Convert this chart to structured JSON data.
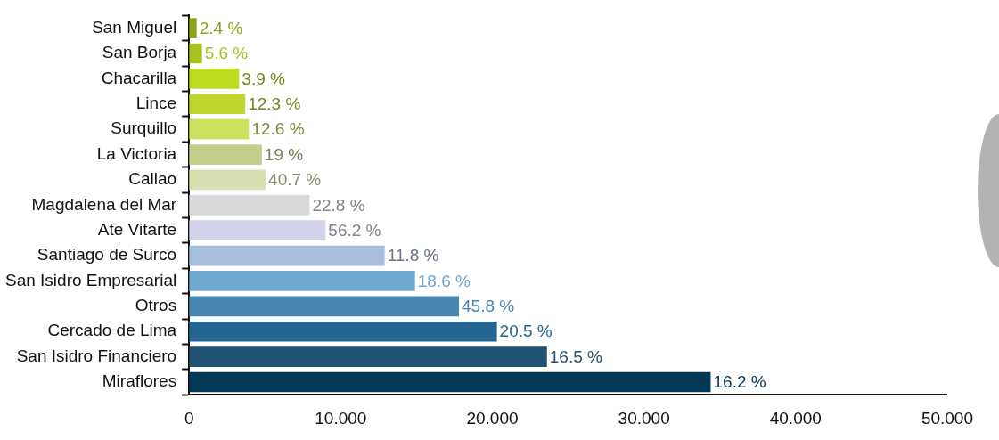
{
  "chart_data": {
    "type": "bar",
    "orientation": "horizontal",
    "categories": [
      "San Miguel",
      "San Borja",
      "Chacarilla",
      "Lince",
      "Surquillo",
      "La Victoria",
      "Callao",
      "Magdalena del Mar",
      "Ate Vitarte",
      "Santiago de Surco",
      "San Isidro Empresarial",
      "Otros",
      "Cercado de Lima",
      "San Isidro Financiero",
      "Miraflores"
    ],
    "values": [
      0.5,
      0.85,
      3.3,
      3.7,
      3.95,
      4.8,
      5.05,
      7.95,
      9,
      12.9,
      14.9,
      17.8,
      20.3,
      23.6,
      34.4
    ],
    "colors": [
      "#8ea31a",
      "#a7c11e",
      "#bedc1f",
      "#c0d62f",
      "#cde05e",
      "#c4cf8c",
      "#d6e0b0",
      "#d9d9d9",
      "#d2d2e8",
      "#a8bedd",
      "#71a8d0",
      "#4786b0",
      "#236692",
      "#225273",
      "#043858"
    ],
    "annotations": [
      {
        "text": "2.4 %",
        "x": 0.5,
        "y": "San Miguel"
      },
      {
        "text": "5.6 %",
        "x": 0.85,
        "y": "San Borja"
      },
      {
        "text": "3.9 %",
        "x": 3.3,
        "y": "Chacarilla"
      },
      {
        "text": "12.3 %",
        "x": 3.7,
        "y": "Lince"
      },
      {
        "text": "12.6 %",
        "x": 3.95,
        "y": "Surquillo"
      },
      {
        "text": "19 %",
        "x": 4.8,
        "y": "La Victoria"
      },
      {
        "text": "40.7 %",
        "x": 5.05,
        "y": "Callao"
      },
      {
        "text": "22.8 %",
        "x": 7.95,
        "y": "Magdalena del Mar"
      },
      {
        "text": "56.2 %",
        "x": 9,
        "y": "Ate Vitarte"
      },
      {
        "text": "11.8 %",
        "x": 12.9,
        "y": "Santiago de Surco"
      },
      {
        "text": "18.6 %",
        "x": 14.9,
        "y": "San Isidro Empresarial"
      },
      {
        "text": "45.8 %",
        "x": 17.8,
        "y": "Otros"
      },
      {
        "text": "20.5 %",
        "x": 20.3,
        "y": "Cercado de Lima"
      },
      {
        "text": "16.5 %",
        "x": 23.6,
        "y": "San Isidro Financiero"
      },
      {
        "text": "16.2 %",
        "x": 34.4,
        "y": "Miraflores"
      }
    ],
    "xlim": [
      0,
      50
    ],
    "xticks": [
      {
        "value": 0,
        "label": "0"
      },
      {
        "value": 10,
        "label": "10.000"
      },
      {
        "value": 20,
        "label": "20.000"
      },
      {
        "value": 30,
        "label": "30.000"
      },
      {
        "value": 40,
        "label": "40.000"
      },
      {
        "value": 50,
        "label": "50.000"
      }
    ]
  }
}
